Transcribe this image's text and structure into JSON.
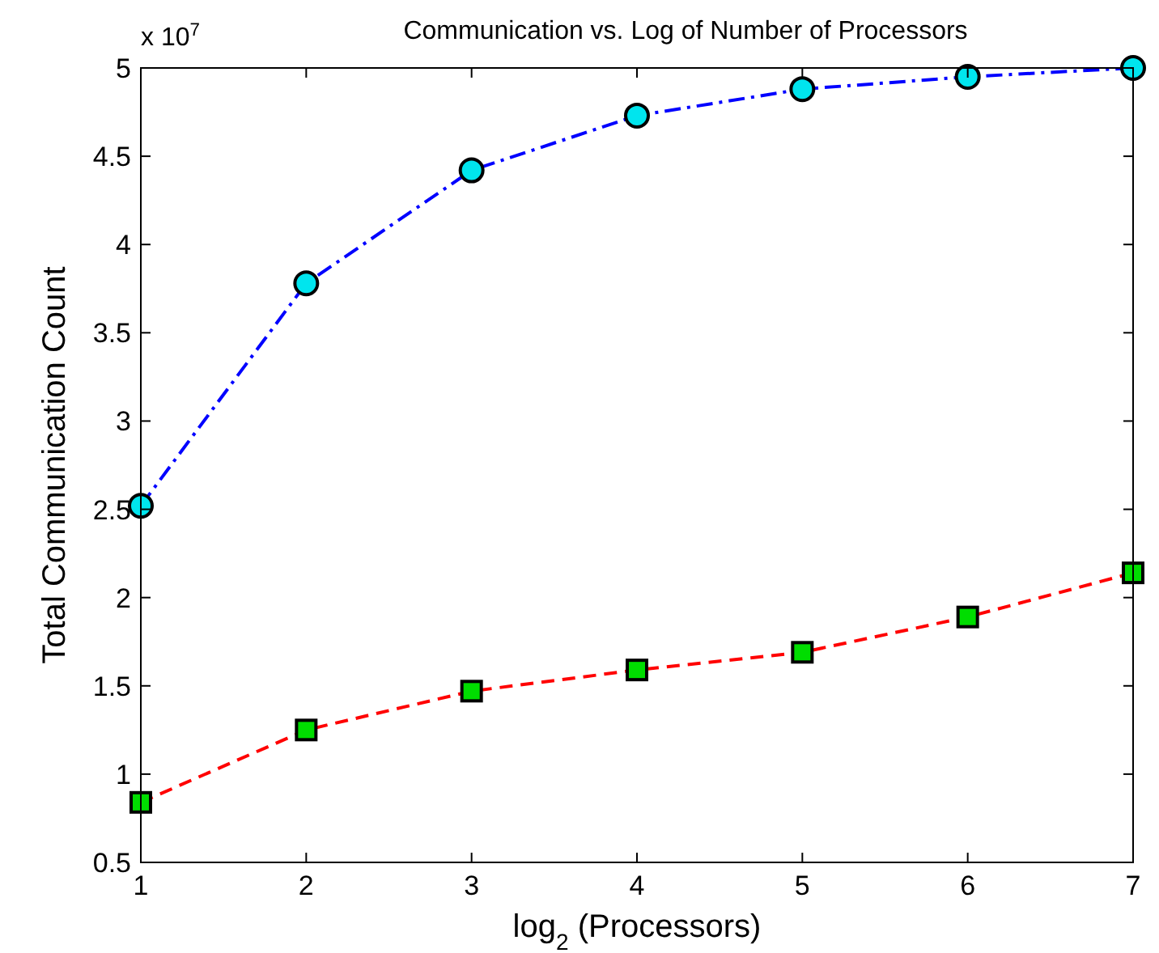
{
  "chart_data": {
    "type": "line",
    "title": "Communication vs. Log of Number of Processors",
    "xlabel": "log$_{2}$ (Processors)",
    "ylabel": "Total Communication Count",
    "annotations": [
      "x 10$^{7}$"
    ],
    "x": [
      1,
      2,
      3,
      4,
      5,
      6,
      7
    ],
    "xlim": [
      1,
      7
    ],
    "xticks": [
      1,
      2,
      3,
      4,
      5,
      6,
      7
    ],
    "ylim": [
      0.5,
      5
    ],
    "yticks": [
      0.5,
      1,
      1.5,
      2,
      2.5,
      3,
      3.5,
      4,
      4.5,
      5
    ],
    "grid": false,
    "series": [
      {
        "color": "#0000ff",
        "colors": [
          "#00e5ee",
          "#00e5ee",
          "#00e5ee",
          "#00e5ee",
          "#00e5ee",
          "#00e5ee",
          "#00e5ee"
        ],
        "marker": "circle",
        "line_style": "dashdot",
        "values": [
          2.52,
          3.78,
          4.42,
          4.73,
          4.88,
          4.95,
          5.0
        ]
      },
      {
        "color": "#ff0000",
        "colors": [
          "#00dd00",
          "#00dd00",
          "#00dd00",
          "#00dd00",
          "#00dd00",
          "#00dd00",
          "#00dd00"
        ],
        "marker": "square",
        "line_style": "dashed",
        "values": [
          0.84,
          1.25,
          1.47,
          1.59,
          1.69,
          1.89,
          2.14
        ]
      }
    ]
  }
}
